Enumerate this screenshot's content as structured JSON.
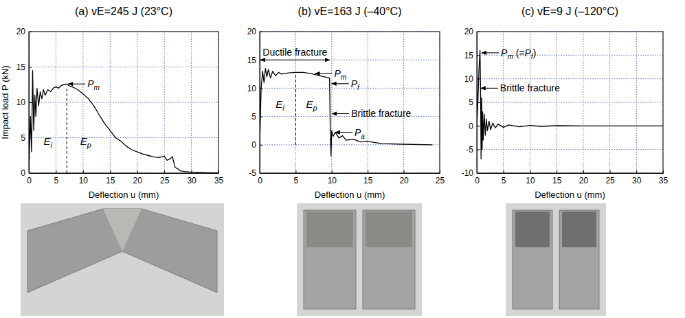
{
  "chart_data": [
    {
      "type": "line",
      "title": "(a) vE=245 J (23°C)",
      "x_label": "Deflection u (mm)",
      "y_label": "Impact load P (kN)",
      "x": [
        0,
        0.3,
        0.5,
        0.7,
        0.9,
        1.1,
        1.3,
        1.5,
        1.8,
        2.1,
        2.4,
        2.7,
        3.0,
        3.5,
        4,
        4.5,
        5,
        5.5,
        6,
        6.5,
        7,
        7.5,
        8,
        9,
        10,
        11,
        12,
        13,
        14,
        15,
        16,
        17,
        18,
        19,
        20,
        21,
        22,
        23,
        24,
        25,
        25.5,
        26,
        26.5,
        27,
        27.5,
        28,
        29,
        30,
        32,
        35
      ],
      "series": [
        {
          "color": "#000000",
          "values": [
            0,
            8,
            3,
            14.5,
            6,
            11,
            8,
            12,
            9.5,
            11.5,
            10.5,
            11.8,
            11,
            11.8,
            11.5,
            12,
            12.2,
            12,
            12.4,
            12.5,
            12.6,
            12.3,
            12.2,
            11.8,
            11.2,
            10.5,
            9.5,
            8.2,
            7,
            6,
            5,
            4.5,
            3.8,
            3.3,
            3.0,
            2.7,
            2.5,
            2.3,
            2.2,
            2.4,
            1.8,
            2.0,
            2.3,
            0.8,
            0.6,
            0.3,
            0.2,
            0.1,
            0.05,
            0
          ]
        }
      ],
      "xlim": [
        0,
        35
      ],
      "ylim": [
        0,
        20
      ],
      "xticks": [
        0,
        5,
        10,
        15,
        20,
        25,
        30,
        35
      ],
      "yticks": [
        0,
        5,
        10,
        15,
        20
      ],
      "grid": true,
      "annotations": [
        {
          "text": "Pm",
          "x": 7,
          "y": 12.6
        }
      ],
      "labels": [
        {
          "text": "Ei",
          "x": 3.5,
          "y": 4
        },
        {
          "text": "Ep",
          "x": 10.5,
          "y": 4
        }
      ],
      "vlines": [
        {
          "x": 7,
          "y": 12.3
        }
      ]
    },
    {
      "type": "line",
      "title": "(b) vE=163 J (–40°C)",
      "x_label": "Deflection u (mm)",
      "x": [
        0,
        0.2,
        0.4,
        0.6,
        0.8,
        1.0,
        1.2,
        1.5,
        1.8,
        2.2,
        2.6,
        3,
        4,
        5,
        6,
        7,
        8,
        9,
        9.7,
        9.8,
        9.9,
        10.0,
        10.2,
        10.5,
        11,
        11.5,
        12,
        13,
        14,
        15,
        17,
        20,
        24
      ],
      "series": [
        {
          "color": "#000000",
          "values": [
            0,
            10,
            13,
            11,
            13.5,
            12,
            13.3,
            11.8,
            13,
            12.2,
            12.8,
            12.5,
            12.7,
            12.8,
            12.8,
            12.6,
            12.3,
            12,
            11.8,
            2.5,
            -2,
            2.5,
            1.5,
            2.2,
            1.2,
            1.6,
            0.8,
            1.0,
            0.5,
            0.6,
            0.2,
            0.1,
            0
          ]
        }
      ],
      "xlim": [
        0,
        25
      ],
      "ylim": [
        -5,
        20
      ],
      "xticks": [
        0,
        5,
        10,
        15,
        20,
        25
      ],
      "yticks": [
        -5,
        0,
        5,
        10,
        15,
        20
      ],
      "grid": true,
      "annotations": [
        {
          "text": "Pm",
          "x": 7.5,
          "y": 12.6
        },
        {
          "text": "Pf",
          "x": 9.8,
          "y": 10.8
        },
        {
          "text": "Brittle fracture",
          "x": 9.85,
          "y": 5.5
        },
        {
          "text": "Pa",
          "x": 10.3,
          "y": 2.2
        }
      ],
      "labels": [
        {
          "text": "Ei",
          "x": 2.8,
          "y": 6.5
        },
        {
          "text": "Ep",
          "x": 7.2,
          "y": 6.5
        }
      ],
      "vlines": [
        {
          "x": 5,
          "y": 12.8
        }
      ],
      "spans": [
        {
          "text": "Ductile fracture",
          "x": [
            0,
            9.8
          ],
          "y": 15
        }
      ]
    },
    {
      "type": "line",
      "title": "(c) vE=9 J (–120°C)",
      "x_label": "Deflection u (mm)",
      "x": [
        0,
        0.2,
        0.4,
        0.6,
        0.7,
        0.8,
        0.9,
        1.0,
        1.1,
        1.2,
        1.4,
        1.6,
        1.8,
        2.0,
        2.3,
        2.6,
        3,
        3.5,
        4,
        5,
        6,
        8,
        10,
        12,
        15,
        20,
        25,
        30,
        35
      ],
      "series": [
        {
          "color": "#000000",
          "values": [
            0,
            5,
            12,
            16,
            8,
            -7,
            6,
            -5,
            3,
            -3,
            2.5,
            -2,
            1.5,
            -1,
            1,
            -0.8,
            0.6,
            -0.4,
            0.4,
            -0.3,
            0.2,
            -0.2,
            0.1,
            -0.1,
            0.05,
            0,
            0,
            0,
            0
          ]
        }
      ],
      "xlim": [
        0,
        35
      ],
      "ylim": [
        -10,
        20
      ],
      "xticks": [
        0,
        5,
        10,
        15,
        20,
        25,
        30,
        35
      ],
      "yticks": [
        -10,
        -5,
        0,
        5,
        10,
        15,
        20
      ],
      "grid": true,
      "annotations": [
        {
          "text": "Pm (=Pf)",
          "x": 0.65,
          "y": 15.5
        },
        {
          "text": "Brittle fracture",
          "x": 0.5,
          "y": 8
        }
      ]
    }
  ]
}
